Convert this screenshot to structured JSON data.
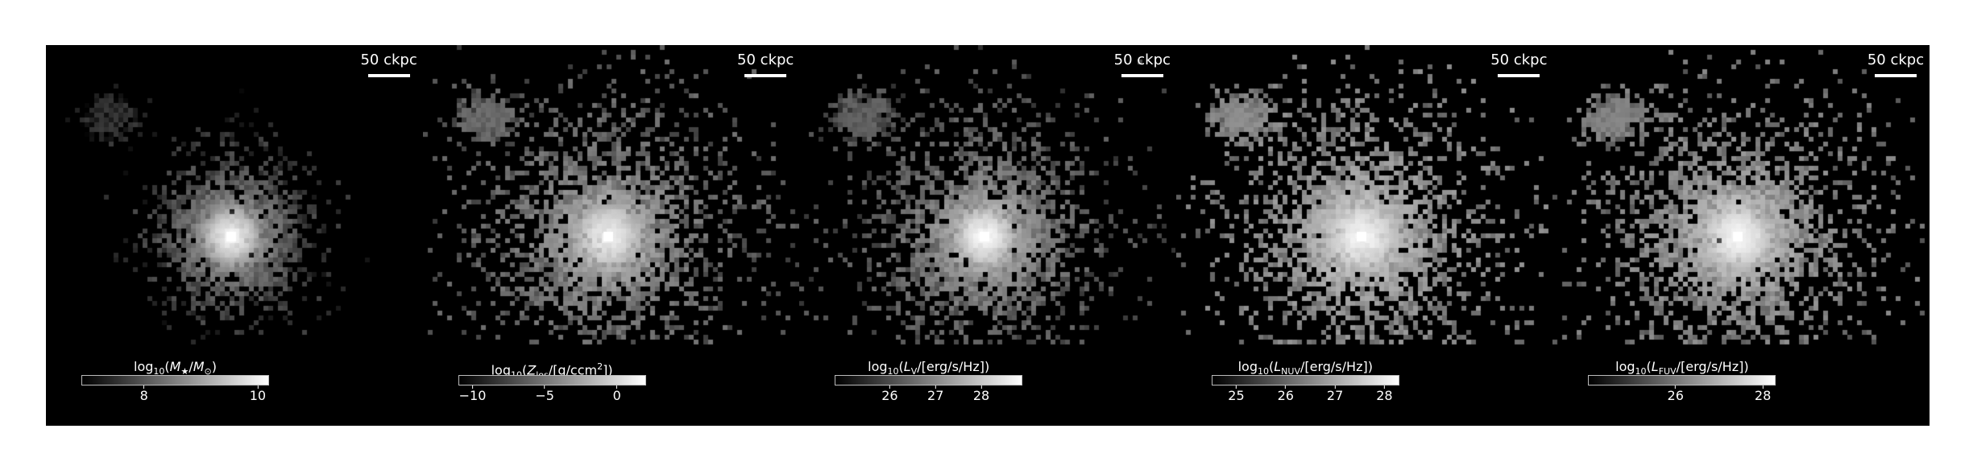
{
  "figure": {
    "panels": [
      {
        "id": "stellar-mass",
        "scale_label": "50 ckpc",
        "colorbar": {
          "label_parts": [
            "log",
            "10",
            "(",
            "M",
            "★",
            "/",
            "M",
            "⊙",
            ")"
          ],
          "min": 6.9,
          "max": 10.2,
          "ticks": [
            {
              "value": 8,
              "label": "8"
            },
            {
              "value": 10,
              "label": "10"
            }
          ]
        },
        "map": {
          "seed": 11,
          "spread": 0.55,
          "halo_density": 0.18,
          "core_brightness": 1.0,
          "background_level": 0.1
        }
      },
      {
        "id": "metallicity-los",
        "scale_label": "50 ckpc",
        "colorbar": {
          "label_parts": [
            "log",
            "10",
            "(",
            "Z",
            "los",
            "/[g/ccm",
            "2",
            "])"
          ],
          "min": -11,
          "max": 2,
          "ticks": [
            {
              "value": -10,
              "label": "−10"
            },
            {
              "value": -5,
              "label": "−5"
            },
            {
              "value": 0,
              "label": "0"
            }
          ]
        },
        "map": {
          "seed": 23,
          "spread": 1.0,
          "halo_density": 0.42,
          "core_brightness": 0.92,
          "background_level": 0.32
        }
      },
      {
        "id": "luminosity-v",
        "scale_label": "50 ckpc",
        "colorbar": {
          "label_parts": [
            "log",
            "10",
            "(",
            "L",
            "V",
            "/[erg/s/Hz])"
          ],
          "min": 24.8,
          "max": 28.9,
          "ticks": [
            {
              "value": 26,
              "label": "26"
            },
            {
              "value": 27,
              "label": "27"
            },
            {
              "value": 28,
              "label": "28"
            }
          ]
        },
        "map": {
          "seed": 37,
          "spread": 0.85,
          "halo_density": 0.38,
          "core_brightness": 1.0,
          "background_level": 0.28
        }
      },
      {
        "id": "luminosity-nuv",
        "scale_label": "50 ckpc",
        "colorbar": {
          "label_parts": [
            "log",
            "10",
            "(",
            "L",
            "NUV",
            "/[erg/s/Hz])"
          ],
          "min": 24.5,
          "max": 28.3,
          "ticks": [
            {
              "value": 25,
              "label": "25"
            },
            {
              "value": 26,
              "label": "26"
            },
            {
              "value": 27,
              "label": "27"
            },
            {
              "value": 28,
              "label": "28"
            }
          ]
        },
        "map": {
          "seed": 51,
          "spread": 0.95,
          "halo_density": 0.45,
          "core_brightness": 0.95,
          "background_level": 0.45
        }
      },
      {
        "id": "luminosity-fuv",
        "scale_label": "50 ckpc",
        "colorbar": {
          "label_parts": [
            "log",
            "10",
            "(",
            "L",
            "FUV",
            "/[erg/s/Hz])"
          ],
          "min": 24.0,
          "max": 28.3,
          "ticks": [
            {
              "value": 26,
              "label": "26"
            },
            {
              "value": 28,
              "label": "28"
            }
          ]
        },
        "map": {
          "seed": 67,
          "spread": 0.95,
          "halo_density": 0.44,
          "core_brightness": 0.95,
          "background_level": 0.42
        }
      }
    ]
  }
}
